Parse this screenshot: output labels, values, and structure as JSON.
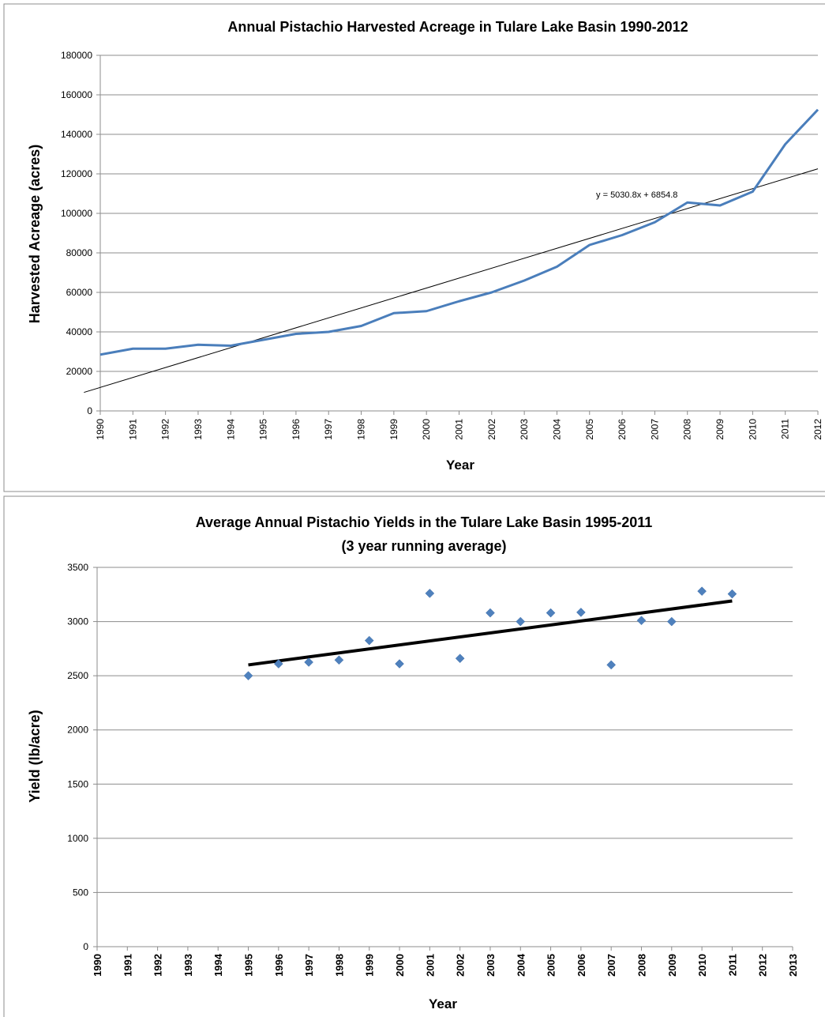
{
  "chart_data": [
    {
      "type": "line",
      "title": "Annual Pistachio Harvested Acreage in Tulare Lake Basin 1990-2012",
      "xlabel": "Year",
      "ylabel": "Harvested Acreage (acres)",
      "x": [
        1990,
        1991,
        1992,
        1993,
        1994,
        1995,
        1996,
        1997,
        1998,
        1999,
        2000,
        2001,
        2002,
        2003,
        2004,
        2005,
        2006,
        2007,
        2008,
        2009,
        2010,
        2011,
        2012
      ],
      "series": [
        {
          "values": [
            28500,
            31500,
            31500,
            33500,
            33000,
            36000,
            39000,
            40000,
            43000,
            49500,
            50500,
            55500,
            60000,
            66000,
            73000,
            84000,
            89000,
            95500,
            105500,
            104000,
            111000,
            135000,
            152500
          ],
          "color": "#4a7ebb"
        }
      ],
      "trendline": {
        "label": "y = 5030.8x + 6854.8",
        "slope": 5030.8,
        "intercept": 6854.8,
        "color": "#000000"
      },
      "ylim": [
        0,
        180000
      ],
      "yticks": [
        0,
        20000,
        40000,
        60000,
        80000,
        100000,
        120000,
        140000,
        160000,
        180000
      ],
      "grid": true,
      "legend": "none"
    },
    {
      "type": "scatter",
      "title": "Average Annual Pistachio Yields in the Tulare Lake Basin 1995-2011",
      "subtitle": "(3 year running average)",
      "xlabel": "Year",
      "ylabel": "Yield (lb/acre)",
      "categories": [
        "1990",
        "1991",
        "1992",
        "1993",
        "1994",
        "1995",
        "1996",
        "1997",
        "1998",
        "1999",
        "2000",
        "2001",
        "2002",
        "2003",
        "2004",
        "2005",
        "2006",
        "2007",
        "2008",
        "2009",
        "2010",
        "2011",
        "2012",
        "2013"
      ],
      "points": [
        {
          "x": "1995",
          "y": 2500
        },
        {
          "x": "1996",
          "y": 2610
        },
        {
          "x": "1997",
          "y": 2625
        },
        {
          "x": "1998",
          "y": 2645
        },
        {
          "x": "1999",
          "y": 2825
        },
        {
          "x": "2000",
          "y": 2610
        },
        {
          "x": "2001",
          "y": 3260
        },
        {
          "x": "2002",
          "y": 2660
        },
        {
          "x": "2003",
          "y": 3080
        },
        {
          "x": "2004",
          "y": 3000
        },
        {
          "x": "2005",
          "y": 3080
        },
        {
          "x": "2006",
          "y": 3085
        },
        {
          "x": "2007",
          "y": 2600
        },
        {
          "x": "2008",
          "y": 3010
        },
        {
          "x": "2009",
          "y": 3000
        },
        {
          "x": "2010",
          "y": 3280
        },
        {
          "x": "2011",
          "y": 3255
        }
      ],
      "trendline": {
        "from": {
          "x": "1995",
          "y": 2600
        },
        "to": {
          "x": "2011",
          "y": 3190
        },
        "color": "#000000"
      },
      "marker_color": "#4f81bd",
      "ylim": [
        0,
        3500
      ],
      "yticks": [
        0,
        500,
        1000,
        1500,
        2000,
        2500,
        3000,
        3500
      ],
      "grid": true,
      "legend": "none"
    }
  ]
}
